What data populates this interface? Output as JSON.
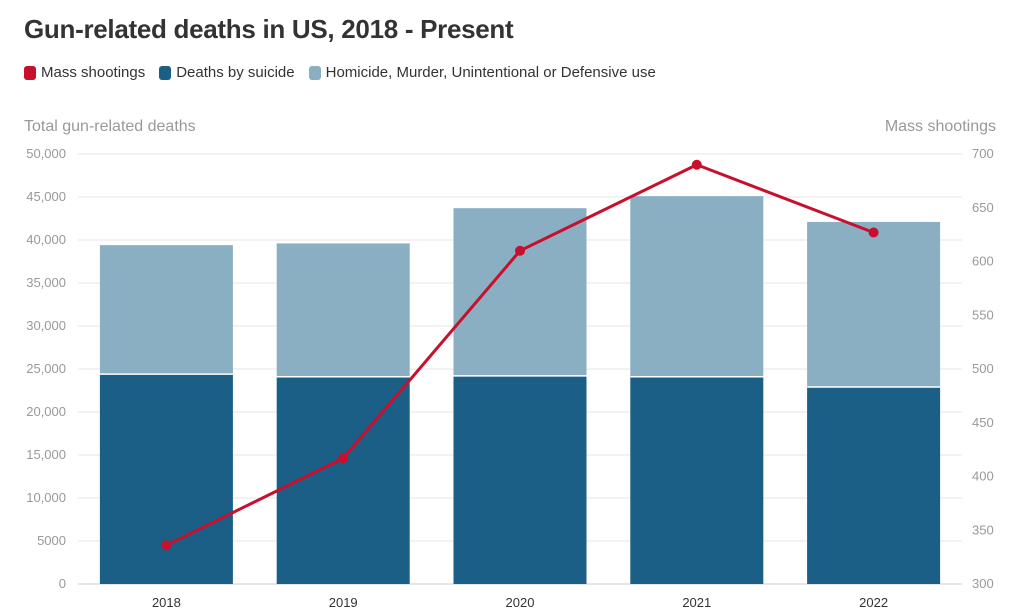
{
  "title": "Gun-related deaths in US, 2018 - Present",
  "legend": [
    {
      "label": "Mass shootings",
      "color": "#c8102e"
    },
    {
      "label": "Deaths by suicide",
      "color": "#1b5e86"
    },
    {
      "label": "Homicide, Murder, Unintentional or Defensive use",
      "color": "#8aaec2"
    }
  ],
  "chart_data": {
    "type": "bar",
    "title": "Gun-related deaths in US, 2018 - Present",
    "ylabel": "Total gun-related deaths",
    "y2label": "Mass shootings",
    "categories": [
      "2018",
      "2019",
      "2020",
      "2021",
      "2022"
    ],
    "ylim": [
      0,
      50000
    ],
    "y2lim": [
      300,
      700
    ],
    "yticks": [
      "0",
      "5000",
      "10,000",
      "15,000",
      "20,000",
      "25,000",
      "30,000",
      "35,000",
      "40,000",
      "45,000",
      "50,000"
    ],
    "y2ticks": [
      "300",
      "350",
      "400",
      "450",
      "500",
      "550",
      "600",
      "650",
      "700"
    ],
    "stacked": true,
    "grid": true,
    "legend_position": "top-left",
    "series": [
      {
        "name": "Deaths by suicide",
        "kind": "bar",
        "color": "#1b5e86",
        "values": [
          24400,
          24100,
          24200,
          24100,
          22900
        ]
      },
      {
        "name": "Homicide, Murder, Unintentional or Defensive use",
        "kind": "bar",
        "color": "#8aaec2",
        "values": [
          15000,
          15500,
          19500,
          21000,
          19200
        ]
      },
      {
        "name": "Mass shootings",
        "kind": "line",
        "axis": "right",
        "color": "#c8102e",
        "values": [
          336,
          417,
          610,
          690,
          627
        ]
      }
    ]
  }
}
